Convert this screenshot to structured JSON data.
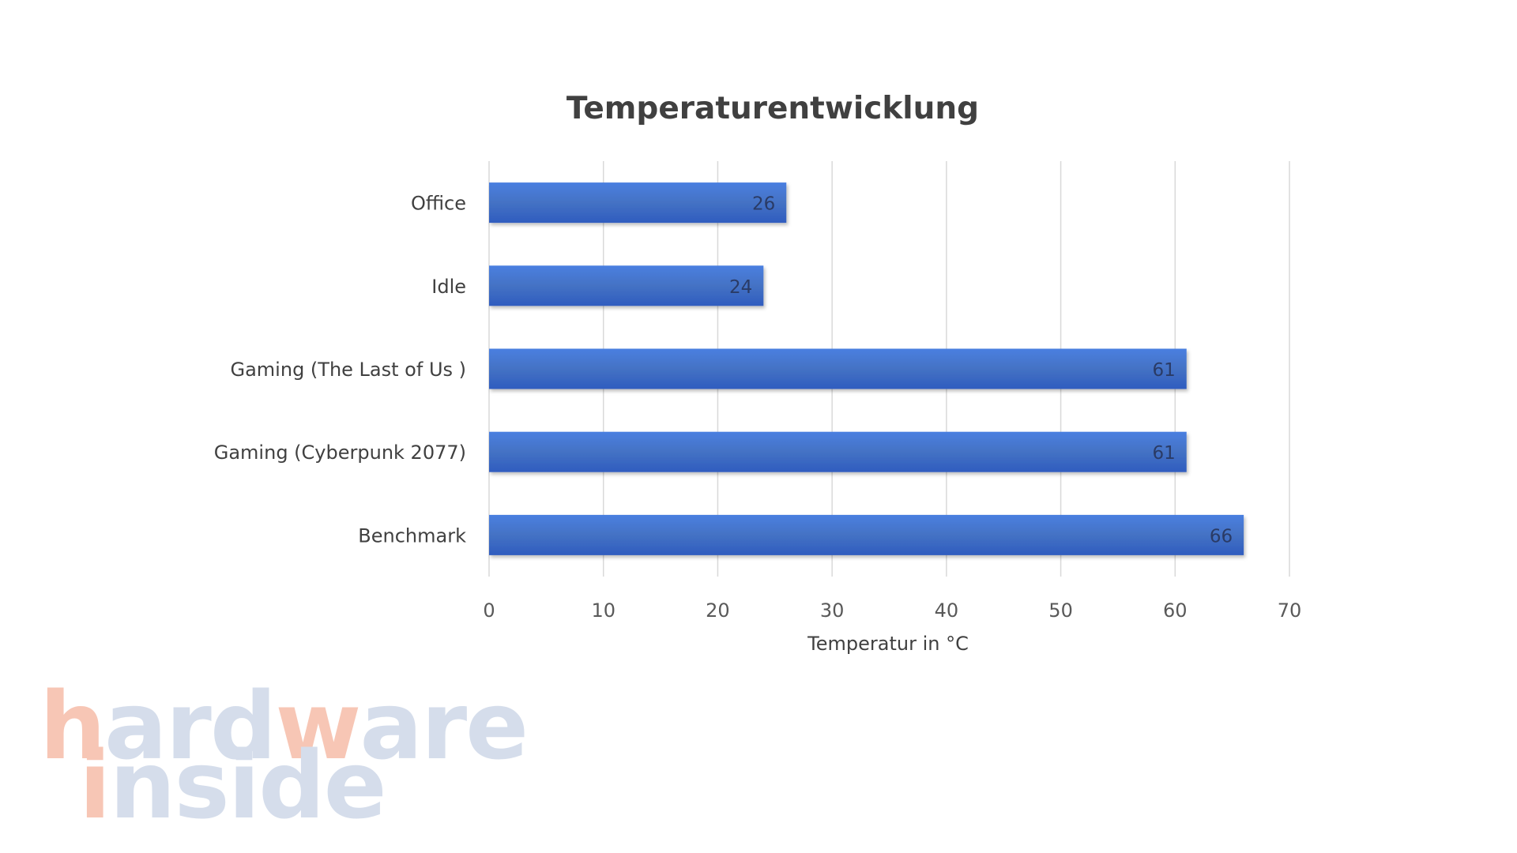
{
  "chart_data": {
    "type": "bar",
    "orientation": "horizontal",
    "title": "Temperaturentwicklung",
    "xlabel": "Temperatur in °C",
    "ylabel": "",
    "categories": [
      "Office",
      "Idle",
      "Gaming (The Last of Us )",
      "Gaming (Cyberpunk 2077)",
      "Benchmark"
    ],
    "values": [
      26,
      24,
      61,
      61,
      66
    ],
    "xlim": [
      0,
      70
    ],
    "ticks": [
      0,
      10,
      20,
      30,
      40,
      50,
      60,
      70
    ],
    "grid": true,
    "legend": "none",
    "bar_color": "#4472c4",
    "bar_color_light": "#4a7fe0",
    "bar_color_dark": "#2f5cbf"
  },
  "watermark": {
    "line1": "hardware",
    "line2": "inside",
    "color_accent": "#f7c4b2",
    "color_main": "#d3dcea"
  }
}
